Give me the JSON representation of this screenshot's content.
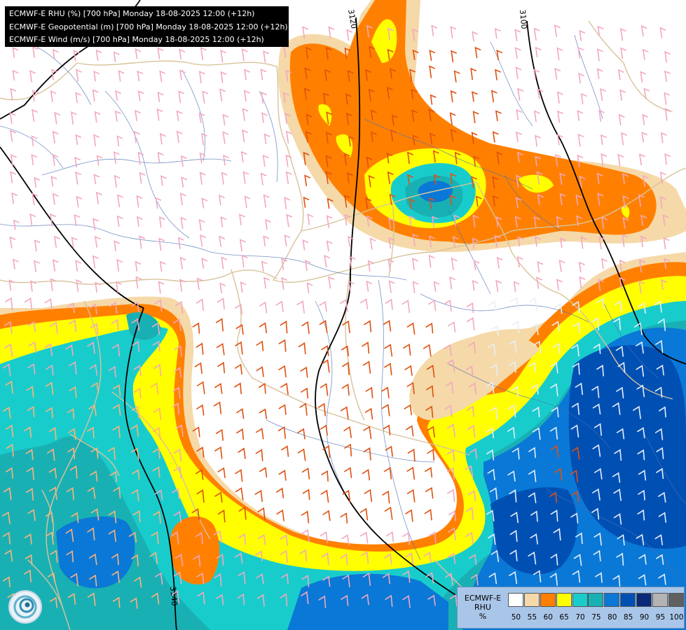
{
  "header": {
    "lines": [
      "ECMWF-E RHU (%) [700 hPa] Monday 18-08-2025 12:00 (+12h)",
      "ECMWF-E Geopotential (m) [700 hPa] Monday 18-08-2025 12:00 (+12h)",
      "ECMWF-E Wind (m/s) [700 hPa] Monday 18-08-2025 12:00 (+12h)"
    ]
  },
  "contours": {
    "labels": [
      "3120",
      "3100",
      "3140"
    ]
  },
  "legend": {
    "title_line1": "ECMWF-E",
    "title_line2": "RHU",
    "title_line3": "%",
    "ticks": [
      "50",
      "55",
      "60",
      "65",
      "70",
      "75",
      "80",
      "85",
      "90",
      "95",
      "100"
    ],
    "colors": [
      "#ffffff",
      "#f5d9a8",
      "#ff8000",
      "#ffff00",
      "#19cccc",
      "#19b0b4",
      "#0a78d6",
      "#0050b4",
      "#0a2a78",
      "#b4b4b4",
      "#606060"
    ]
  },
  "colors": {
    "rh_55": "#f5d9a8",
    "rh_60": "#ff8000",
    "rh_65": "#ffff00",
    "rh_70": "#19cccc",
    "rh_75": "#19b0b4",
    "rh_80": "#0a78d6",
    "rh_85": "#0050b4",
    "borders": "#d8c39a",
    "rivers": "#4a6fb5",
    "wind_barbs_light": "#f2a8c0",
    "wind_barbs_strong": "#e05010",
    "contour": "#000000"
  },
  "logo": "ecmwf-swirl-logo"
}
